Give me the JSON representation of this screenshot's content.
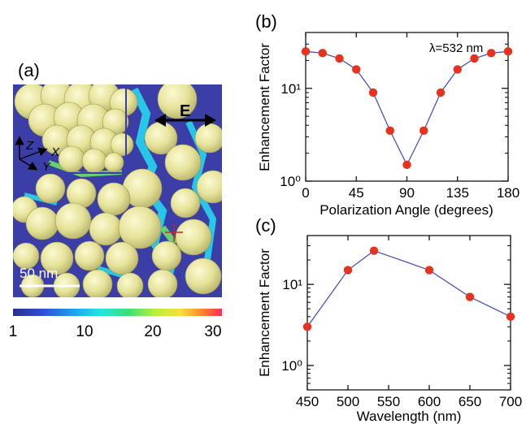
{
  "panel_a": {
    "label": "(a)",
    "field_arrow_label": "E",
    "axis_z_label": "Z",
    "axis_x_label": "X",
    "axis_y_label": "Y",
    "scale_bar_label": "50 nm",
    "colorbar_ticks": [
      "1",
      "10",
      "20",
      "30"
    ],
    "colors": {
      "background": "#3a3ea6",
      "particle": "#e8e59a",
      "hotspot_cyan": "#27d6f0",
      "hotspot_green": "#6fe06a",
      "hotspot_red": "#ff2a2a"
    }
  },
  "chart_data": [
    {
      "type": "line",
      "panel_label": "(b)",
      "annotation": "λ=532 nm",
      "xlabel": "Polarization Angle (degrees)",
      "ylabel": "Enhancement Factor",
      "x": [
        0,
        15,
        30,
        45,
        60,
        75,
        90,
        105,
        120,
        135,
        150,
        165,
        180
      ],
      "y": [
        25,
        24,
        21,
        16,
        9,
        3.5,
        1.5,
        3.5,
        9,
        16,
        21,
        24,
        25
      ],
      "xlim": [
        0,
        180
      ],
      "ylim": [
        1,
        40
      ],
      "yscale": "log",
      "xticks": [
        "0",
        "45",
        "90",
        "135",
        "180"
      ],
      "ytick_labels": [
        "10⁰",
        "10¹"
      ],
      "line_color": "#4a52b8",
      "marker_color": "#e8321e"
    },
    {
      "type": "line",
      "panel_label": "(c)",
      "xlabel": "Wavelength (nm)",
      "ylabel": "Enhancement Factor",
      "x": [
        450,
        500,
        532,
        600,
        650,
        700
      ],
      "y": [
        3,
        15,
        26,
        15,
        7,
        4
      ],
      "xlim": [
        450,
        700
      ],
      "ylim": [
        0.5,
        40
      ],
      "yscale": "log",
      "xticks": [
        "450",
        "500",
        "550",
        "600",
        "650",
        "700"
      ],
      "ytick_labels": [
        "10⁰",
        "10¹"
      ],
      "line_color": "#4a52b8",
      "marker_color": "#e8321e"
    }
  ]
}
